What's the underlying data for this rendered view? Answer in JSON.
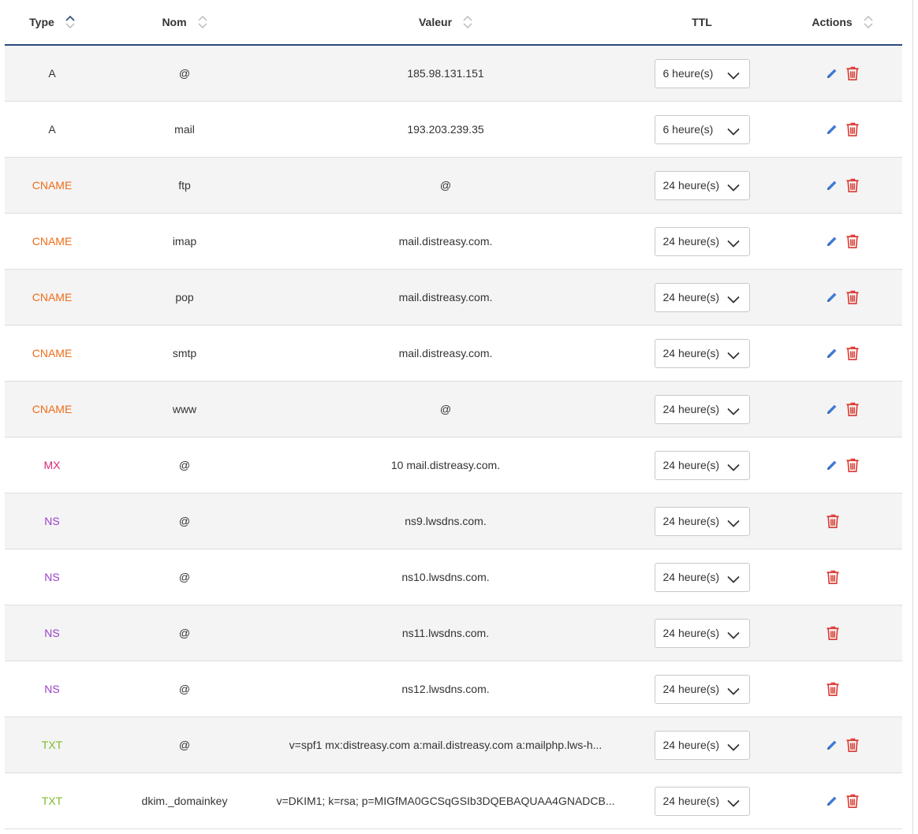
{
  "columns": {
    "type": "Type",
    "nom": "Nom",
    "valeur": "Valeur",
    "ttl": "TTL",
    "actions": "Actions"
  },
  "type_colors": {
    "A": "#333333",
    "CNAME": "#ef6c1a",
    "MX": "#d9287a",
    "NS": "#9a3fc9",
    "TXT": "#7cbd2b"
  },
  "icon_colors": {
    "edit": "#3f7ad6",
    "delete": "#d93a34"
  },
  "icons": {
    "sort": "sort-icon",
    "sort_asc": "sort-asc-icon",
    "edit": "pencil-icon",
    "delete": "trash-icon",
    "dropdown": "chevron-down-icon"
  },
  "records": [
    {
      "type": "A",
      "nom": "@",
      "valeur": "185.98.131.151",
      "ttl": "6 heure(s)",
      "editable": true
    },
    {
      "type": "A",
      "nom": "mail",
      "valeur": "193.203.239.35",
      "ttl": "6 heure(s)",
      "editable": true
    },
    {
      "type": "CNAME",
      "nom": "ftp",
      "valeur": "@",
      "ttl": "24 heure(s)",
      "editable": true
    },
    {
      "type": "CNAME",
      "nom": "imap",
      "valeur": "mail.distreasy.com.",
      "ttl": "24 heure(s)",
      "editable": true
    },
    {
      "type": "CNAME",
      "nom": "pop",
      "valeur": "mail.distreasy.com.",
      "ttl": "24 heure(s)",
      "editable": true
    },
    {
      "type": "CNAME",
      "nom": "smtp",
      "valeur": "mail.distreasy.com.",
      "ttl": "24 heure(s)",
      "editable": true
    },
    {
      "type": "CNAME",
      "nom": "www",
      "valeur": "@",
      "ttl": "24 heure(s)",
      "editable": true
    },
    {
      "type": "MX",
      "nom": "@",
      "valeur": "10 mail.distreasy.com.",
      "ttl": "24 heure(s)",
      "editable": true
    },
    {
      "type": "NS",
      "nom": "@",
      "valeur": "ns9.lwsdns.com.",
      "ttl": "24 heure(s)",
      "editable": false
    },
    {
      "type": "NS",
      "nom": "@",
      "valeur": "ns10.lwsdns.com.",
      "ttl": "24 heure(s)",
      "editable": false
    },
    {
      "type": "NS",
      "nom": "@",
      "valeur": "ns11.lwsdns.com.",
      "ttl": "24 heure(s)",
      "editable": false
    },
    {
      "type": "NS",
      "nom": "@",
      "valeur": "ns12.lwsdns.com.",
      "ttl": "24 heure(s)",
      "editable": false
    },
    {
      "type": "TXT",
      "nom": "@",
      "valeur": "v=spf1 mx:distreasy.com a:mail.distreasy.com a:mailphp.lws-h...",
      "ttl": "24 heure(s)",
      "editable": true
    },
    {
      "type": "TXT",
      "nom": "dkim._domainkey",
      "valeur": "v=DKIM1; k=rsa; p=MIGfMA0GCSqGSIb3DQEBAQUAA4GNADCB...",
      "ttl": "24 heure(s)",
      "editable": true
    }
  ]
}
